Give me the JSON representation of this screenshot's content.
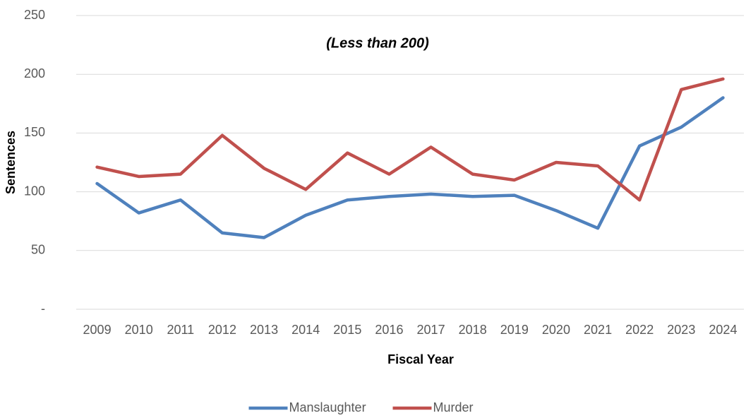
{
  "chart_data": {
    "type": "line",
    "annotation": "(Less than 200)",
    "x_label": "Fiscal Year",
    "y_label": "Sentences",
    "categories": [
      "2009",
      "2010",
      "2011",
      "2012",
      "2013",
      "2014",
      "2015",
      "2016",
      "2017",
      "2018",
      "2019",
      "2020",
      "2021",
      "2022",
      "2023",
      "2024"
    ],
    "series": [
      {
        "name": "Manslaughter",
        "color": "#4f81bd",
        "values": [
          107,
          82,
          93,
          65,
          61,
          80,
          93,
          96,
          98,
          96,
          97,
          84,
          69,
          139,
          155,
          180
        ]
      },
      {
        "name": "Murder",
        "color": "#c0504d",
        "values": [
          121,
          113,
          115,
          148,
          120,
          102,
          133,
          115,
          138,
          115,
          110,
          125,
          122,
          93,
          187,
          196
        ]
      }
    ],
    "ylim": [
      0,
      250
    ],
    "yticks": [
      {
        "value": 0,
        "label": "-"
      },
      50,
      100,
      150,
      200,
      250
    ],
    "grid": true,
    "legend": "bottom"
  }
}
